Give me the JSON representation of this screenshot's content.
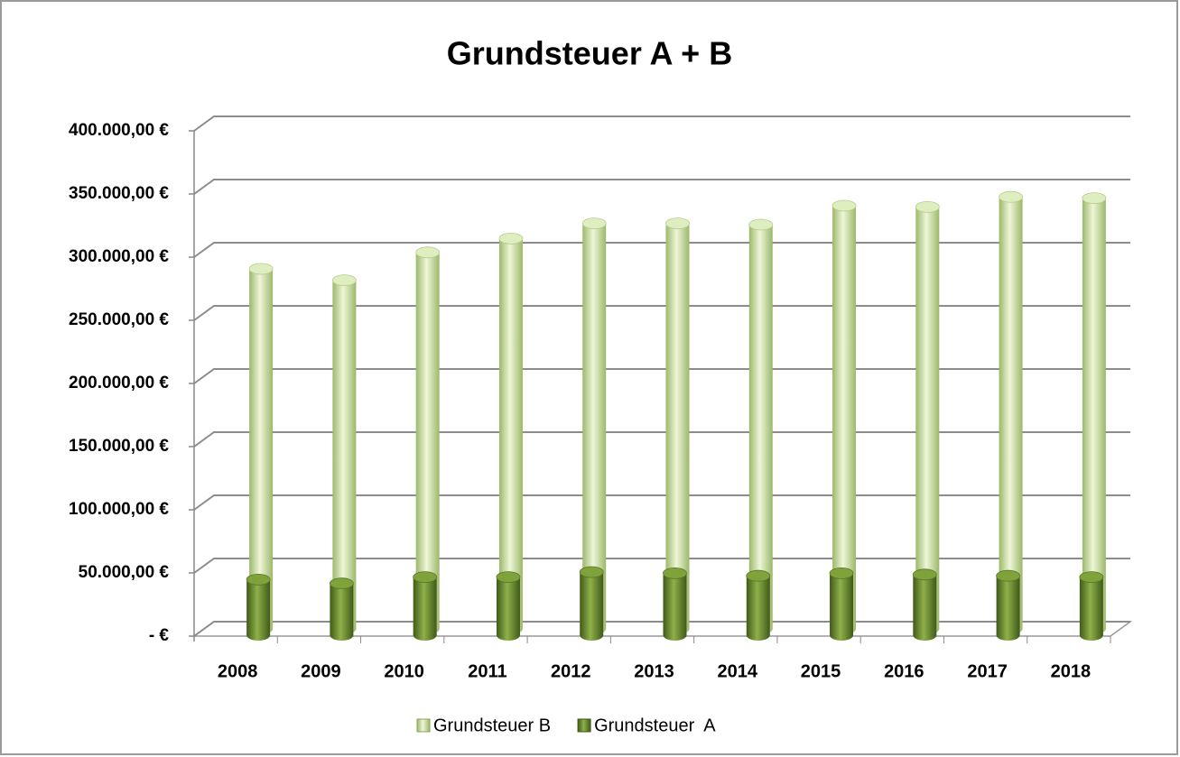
{
  "chart_data": {
    "type": "bar3d",
    "title": "Grundsteuer A + B",
    "categories": [
      "2008",
      "2009",
      "2010",
      "2011",
      "2012",
      "2013",
      "2014",
      "2015",
      "2016",
      "2017",
      "2018"
    ],
    "series": [
      {
        "name": "Grundsteuer B",
        "color": "#c6dc9a",
        "values": [
          285000,
          276000,
          298000,
          309000,
          321000,
          321000,
          320000,
          335000,
          334000,
          342000,
          341000
        ]
      },
      {
        "name": "Grundsteuer  A",
        "color": "#6b8e2e",
        "values": [
          44000,
          41000,
          46000,
          46000,
          50000,
          49000,
          47000,
          49000,
          48000,
          47000,
          46000
        ]
      }
    ],
    "ylim": [
      0,
      400000
    ],
    "yticks": [
      {
        "value": 0,
        "label": "-  €"
      },
      {
        "value": 50000,
        "label": "50.000,00 €"
      },
      {
        "value": 100000,
        "label": "100.000,00 €"
      },
      {
        "value": 150000,
        "label": "150.000,00 €"
      },
      {
        "value": 200000,
        "label": "200.000,00 €"
      },
      {
        "value": 250000,
        "label": "250.000,00 €"
      },
      {
        "value": 300000,
        "label": "300.000,00 €"
      },
      {
        "value": 350000,
        "label": "350.000,00 €"
      },
      {
        "value": 400000,
        "label": "400.000,00 €"
      }
    ],
    "grid": true,
    "legend": "bottom"
  }
}
